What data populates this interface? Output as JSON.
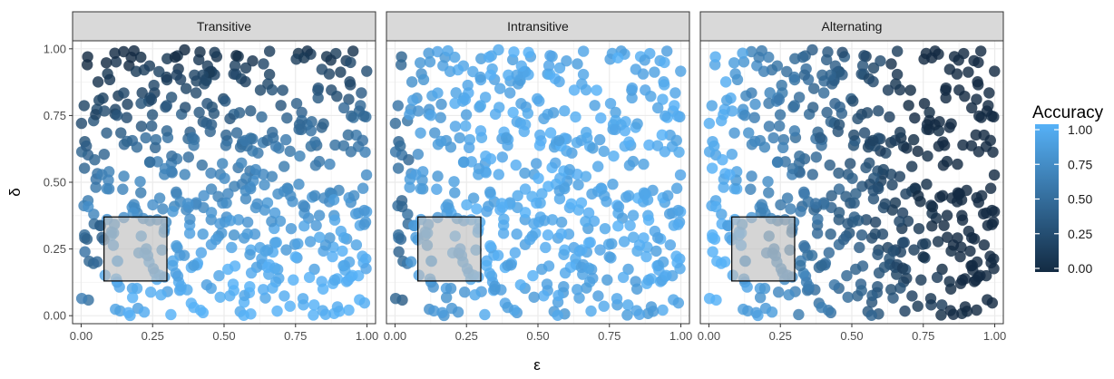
{
  "chart_data": {
    "type": "scatter",
    "x_axis_label": "ε",
    "y_axis_label": "δ",
    "xlim": [
      -0.03,
      1.03
    ],
    "ylim": [
      -0.03,
      1.03
    ],
    "x_ticks": [
      "0.00",
      "0.25",
      "0.50",
      "0.75",
      "1.00"
    ],
    "y_ticks": [
      "0.00",
      "0.25",
      "0.50",
      "0.75",
      "1.00"
    ],
    "grid": true,
    "highlight_region": {
      "x": [
        0.08,
        0.3
      ],
      "y": [
        0.13,
        0.37
      ]
    },
    "legend": {
      "title": "Accuracy",
      "placement": "right",
      "ticks": [
        "1.00",
        "0.75",
        "0.50",
        "0.25",
        "0.00"
      ],
      "color_low": "#132B43",
      "color_high": "#56B1F7"
    },
    "panels": [
      {
        "name": "Transitive",
        "pattern": "transitive",
        "points_approx": 520
      },
      {
        "name": "Intransitive",
        "pattern": "intransitive",
        "points_approx": 520
      },
      {
        "name": "Alternating",
        "pattern": "alternating",
        "points_approx": 520
      }
    ]
  },
  "colors": {
    "strip_fill": "#D9D9D9",
    "panel_border": "#333333",
    "grid_major": "#EBEBEB",
    "grid_minor": "#F5F5F5",
    "region_fill": "#BEBEBE"
  }
}
